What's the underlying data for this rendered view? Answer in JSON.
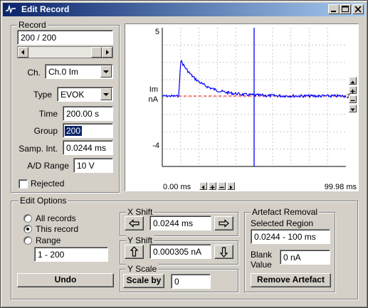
{
  "window": {
    "title": "Edit Record"
  },
  "record": {
    "group_label": "Record",
    "value": "200 / 200",
    "scroll_position": 0.72,
    "channel_label": "Ch.",
    "channel_value": "Ch.0 Im",
    "type_label": "Type",
    "type_value": "EVOK",
    "time_label": "Time",
    "time_value": "200.00 s",
    "group_field_label": "Group",
    "group_value": "200",
    "samp_int_label": "Samp. Int.",
    "samp_int_value": "0.0244 ms",
    "ad_range_label": "A/D Range",
    "ad_range_value": "10 V",
    "rejected_label": "Rejected",
    "rejected_checked": false
  },
  "plot": {
    "y_top_label": "5",
    "y_bottom_label": "-4",
    "channel_name": "Im",
    "channel_units": "nA",
    "zero_marker": "z",
    "x_start_label": "0.00 ms",
    "x_end_label": "99.98 ms"
  },
  "edit_options": {
    "group_label": "Edit Options",
    "all_records_label": "All records",
    "this_record_label": "This record",
    "range_label": "Range",
    "selected_mode": "This record",
    "range_value": "1 - 200",
    "undo_label": "Undo"
  },
  "x_shift": {
    "group_label": "X Shift",
    "value": "0.0244 ms"
  },
  "y_shift": {
    "group_label": "Y Shift",
    "value": "0.000305 nA"
  },
  "y_scale": {
    "group_label": "Y Scale",
    "button_label": "Scale by",
    "value": "0"
  },
  "artefact": {
    "group_label": "Artefact Removal",
    "selected_region_label": "Selected Region",
    "selected_region_value": "0.0244 - 100 ms",
    "blank_label_line1": "Blank",
    "blank_label_line2": "Value",
    "blank_value": "0 nA",
    "remove_button_label": "Remove Artefact"
  },
  "colors": {
    "title_start": "#0a246a",
    "title_end": "#a6caf0",
    "trace": "#0000ff",
    "cursor": "#0000ff",
    "baseline": "#ff0000",
    "grid": "#c0c0c0",
    "face": "#d4d0c8"
  },
  "icons": [
    "app-icon",
    "minimize-icon",
    "maximize-icon",
    "close-icon",
    "arrow-left-icon",
    "arrow-right-icon",
    "arrow-up-icon",
    "arrow-down-icon",
    "chevron-down-icon",
    "triangle-up-icon",
    "triangle-down-icon",
    "plus-icon",
    "minus-icon"
  ]
}
